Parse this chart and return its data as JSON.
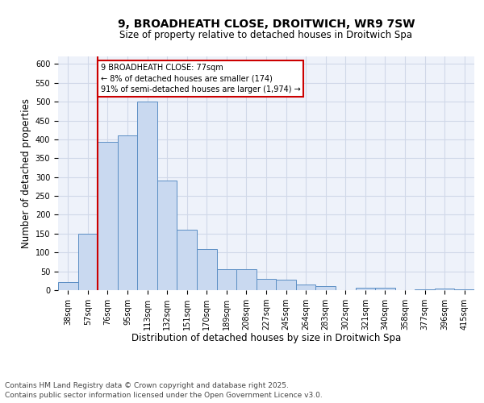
{
  "title_line1": "9, BROADHEATH CLOSE, DROITWICH, WR9 7SW",
  "title_line2": "Size of property relative to detached houses in Droitwich Spa",
  "xlabel": "Distribution of detached houses by size in Droitwich Spa",
  "ylabel": "Number of detached properties",
  "categories": [
    "38sqm",
    "57sqm",
    "76sqm",
    "95sqm",
    "113sqm",
    "132sqm",
    "151sqm",
    "170sqm",
    "189sqm",
    "208sqm",
    "227sqm",
    "245sqm",
    "264sqm",
    "283sqm",
    "302sqm",
    "321sqm",
    "340sqm",
    "358sqm",
    "377sqm",
    "396sqm",
    "415sqm"
  ],
  "values": [
    22,
    150,
    393,
    410,
    500,
    290,
    160,
    110,
    55,
    55,
    30,
    28,
    15,
    10,
    0,
    7,
    7,
    0,
    3,
    5,
    3
  ],
  "bar_color": "#c9d9f0",
  "bar_edge_color": "#5b8ec4",
  "vline_x_index": 2,
  "vline_color": "#cc0000",
  "annotation_text": "9 BROADHEATH CLOSE: 77sqm\n← 8% of detached houses are smaller (174)\n91% of semi-detached houses are larger (1,974) →",
  "annotation_box_color": "#ffffff",
  "annotation_box_edge": "#cc0000",
  "footnote": "Contains HM Land Registry data © Crown copyright and database right 2025.\nContains public sector information licensed under the Open Government Licence v3.0.",
  "ylim": [
    0,
    620
  ],
  "yticks": [
    0,
    50,
    100,
    150,
    200,
    250,
    300,
    350,
    400,
    450,
    500,
    550,
    600
  ],
  "grid_color": "#d0d8e8",
  "bg_color": "#eef2fa",
  "title_fontsize": 10,
  "subtitle_fontsize": 8.5,
  "tick_fontsize": 7,
  "label_fontsize": 8.5,
  "footnote_fontsize": 6.5
}
